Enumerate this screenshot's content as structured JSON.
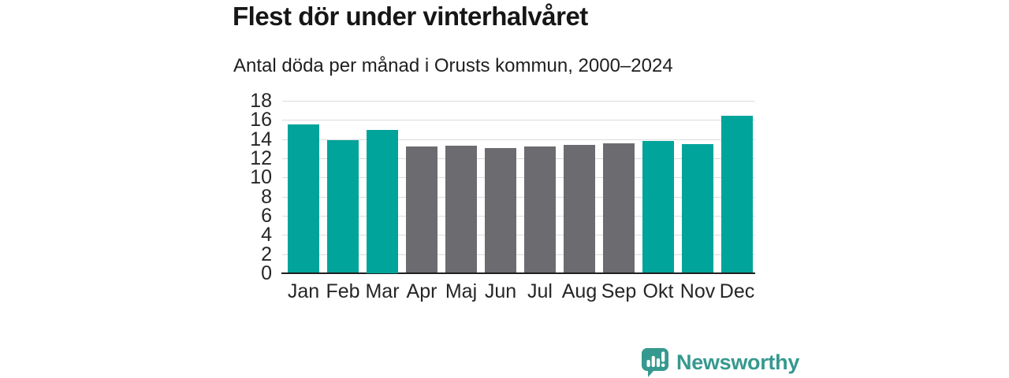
{
  "title": "Flest dör under vinterhalvåret",
  "subtitle": "Antal döda per månad i Orusts kommun, 2000–2024",
  "branding": {
    "logo_text": "Newsworthy",
    "logo_icon": "speech-bubble-bar-chart-icon",
    "logo_color": "#35998f"
  },
  "colors": {
    "teal": "#00a49a",
    "gray": "#6c6b70",
    "gridline": "#dcdcdc",
    "axis": "#1f1f1f",
    "text": "#262626"
  },
  "chart_data": {
    "type": "bar",
    "categories": [
      "Jan",
      "Feb",
      "Mar",
      "Apr",
      "Maj",
      "Jun",
      "Jul",
      "Aug",
      "Sep",
      "Okt",
      "Nov",
      "Dec"
    ],
    "values": [
      15.5,
      13.9,
      15.0,
      13.2,
      13.3,
      13.1,
      13.2,
      13.4,
      13.6,
      13.8,
      13.5,
      16.4
    ],
    "bar_colors": [
      "teal",
      "teal",
      "teal",
      "gray",
      "gray",
      "gray",
      "gray",
      "gray",
      "gray",
      "teal",
      "teal",
      "teal"
    ],
    "title": "Flest dör under vinterhalvåret",
    "subtitle": "Antal döda per månad i Orusts kommun, 2000–2024",
    "xlabel": "",
    "ylabel": "",
    "ylim": [
      0,
      18
    ],
    "yticks": [
      0,
      2,
      4,
      6,
      8,
      10,
      12,
      14,
      16,
      18
    ],
    "grid": true,
    "legend": false
  }
}
